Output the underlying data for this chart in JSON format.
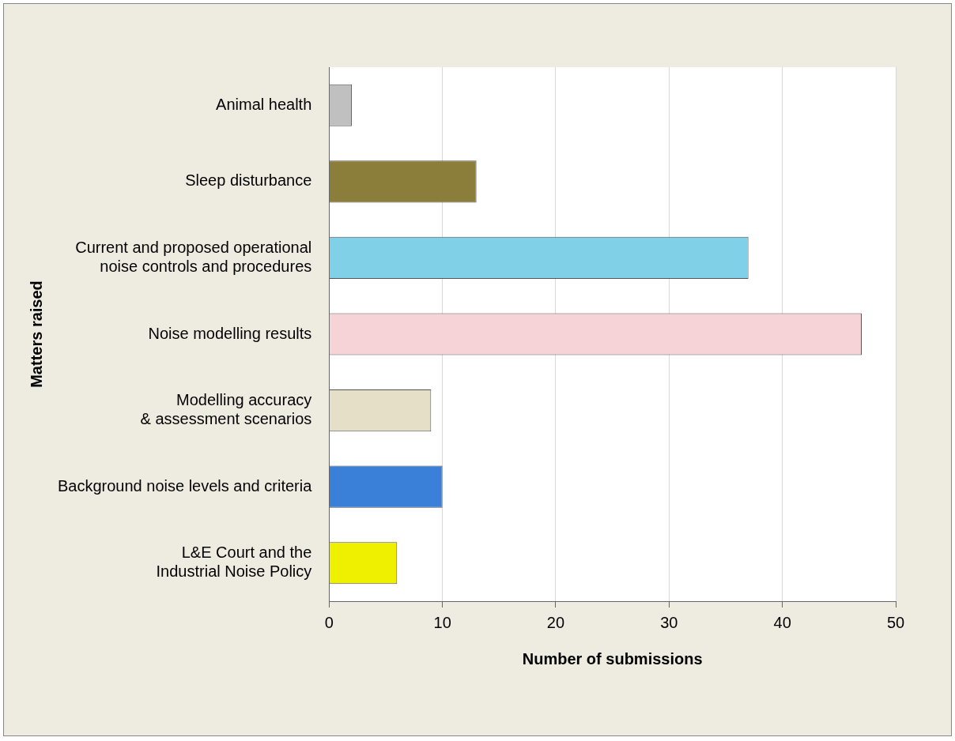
{
  "chart_data": {
    "type": "bar",
    "orientation": "horizontal",
    "xlabel": "Number of submissions",
    "ylabel": "Matters raised",
    "categories": [
      "Animal health",
      "Sleep disturbance",
      "Current and proposed operational\nnoise controls and procedures",
      "Noise modelling results",
      "Modelling accuracy\n& assessment scenarios",
      "Background noise levels and criteria",
      "L&E Court and the\nIndustrial Noise Policy"
    ],
    "values": [
      2,
      13,
      37,
      47,
      9,
      10,
      6
    ],
    "colors": [
      "#c0c0c0",
      "#8b7d3a",
      "#80d0e8",
      "#f5d3d6",
      "#e6dfc8",
      "#3a7fd8",
      "#eef000"
    ],
    "xlim": [
      0,
      50
    ],
    "xticks": [
      0,
      10,
      20,
      30,
      40,
      50
    ],
    "grid": "x",
    "legend": false
  }
}
